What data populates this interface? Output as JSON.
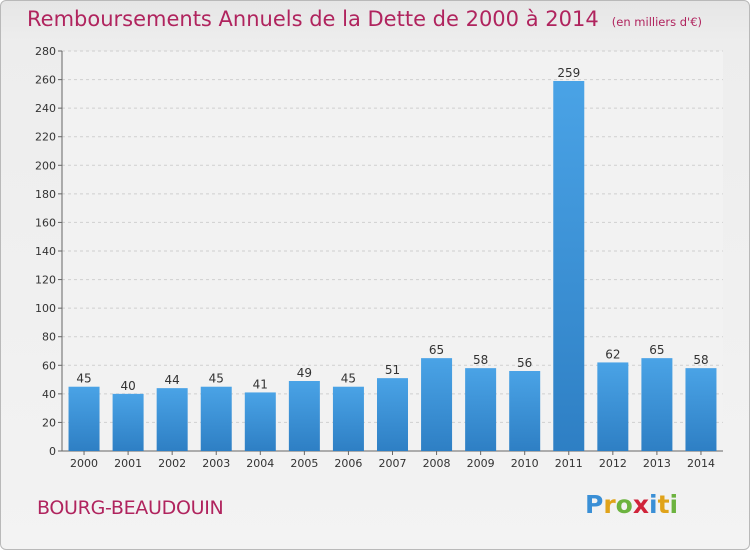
{
  "chart_data": {
    "type": "bar",
    "title": "Remboursements Annuels de la Dette de 2000 à 2014",
    "unit_note": "(en milliers d'€)",
    "categories": [
      "2000",
      "2001",
      "2002",
      "2003",
      "2004",
      "2005",
      "2006",
      "2007",
      "2008",
      "2009",
      "2010",
      "2011",
      "2012",
      "2013",
      "2014"
    ],
    "values": [
      45,
      40,
      44,
      45,
      41,
      49,
      45,
      51,
      65,
      58,
      56,
      259,
      62,
      65,
      58
    ],
    "ylim": [
      0,
      280
    ],
    "yticks": [
      0,
      20,
      40,
      60,
      80,
      100,
      120,
      140,
      160,
      180,
      200,
      220,
      240,
      260,
      280
    ],
    "grid": true,
    "bar_color": "#4aa3e6",
    "bar_color_dark": "#2e7fc4",
    "title_color": "#b0245e"
  },
  "location": "BOURG-BEAUDOUIN",
  "brand": {
    "letters": [
      "P",
      "r",
      "o",
      "x",
      "i",
      "t",
      "i"
    ],
    "colors": [
      "#3a8fd6",
      "#e0a31a",
      "#6cb33f",
      "#d0243a",
      "#3a8fd6",
      "#e0a31a",
      "#6cb33f"
    ]
  }
}
